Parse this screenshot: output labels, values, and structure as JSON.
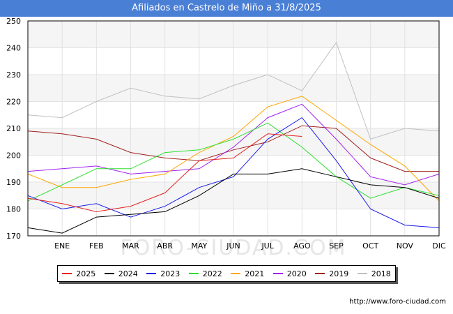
{
  "page": {
    "title": "Afiliados en Castrelo de Miño a 31/8/2025",
    "footer_url": "http://www.foro-ciudad.com",
    "watermark": "FORO-CIUDAD.COM"
  },
  "chart_data": {
    "type": "line",
    "title": "Afiliados en Castrelo de Miño a 31/8/2025",
    "xlabel": "",
    "ylabel": "",
    "categories": [
      "",
      "ENE",
      "FEB",
      "MAR",
      "ABR",
      "MAY",
      "JUN",
      "JUL",
      "AGO",
      "SEP",
      "OCT",
      "NOV",
      "DIC"
    ],
    "yticks": [
      170,
      180,
      190,
      200,
      210,
      220,
      230,
      240,
      250
    ],
    "ylim": [
      170,
      250
    ],
    "grid": true,
    "legend_position": "bottom",
    "series": [
      {
        "name": "2025",
        "color": "#e3231f",
        "values": [
          184,
          182,
          179,
          181,
          186,
          198,
          199,
          208,
          207,
          null,
          null,
          null,
          null
        ]
      },
      {
        "name": "2024",
        "color": "#000000",
        "values": [
          173,
          171,
          177,
          178,
          179,
          185,
          193,
          193,
          195,
          192,
          189,
          188,
          184
        ]
      },
      {
        "name": "2023",
        "color": "#1a1aef",
        "values": [
          185,
          180,
          182,
          177,
          181,
          188,
          192,
          206,
          214,
          198,
          180,
          174,
          173
        ]
      },
      {
        "name": "2022",
        "color": "#2ce02c",
        "values": [
          183,
          189,
          195,
          195,
          201,
          202,
          206,
          212,
          203,
          192,
          184,
          188,
          185
        ]
      },
      {
        "name": "2021",
        "color": "#ffa500",
        "values": [
          193,
          188,
          188,
          191,
          193,
          201,
          207,
          218,
          222,
          213,
          204,
          196,
          183
        ]
      },
      {
        "name": "2020",
        "color": "#a020f0",
        "values": [
          194,
          195,
          196,
          193,
          194,
          195,
          203,
          214,
          219,
          206,
          192,
          189,
          193
        ]
      },
      {
        "name": "2019",
        "color": "#a0201e",
        "values": [
          209,
          208,
          206,
          201,
          199,
          198,
          202,
          205,
          211,
          210,
          199,
          194,
          194
        ]
      },
      {
        "name": "2018",
        "color": "#c0c0c0",
        "values": [
          215,
          214,
          220,
          225,
          222,
          221,
          226,
          230,
          224,
          242,
          206,
          210,
          209
        ]
      }
    ]
  }
}
